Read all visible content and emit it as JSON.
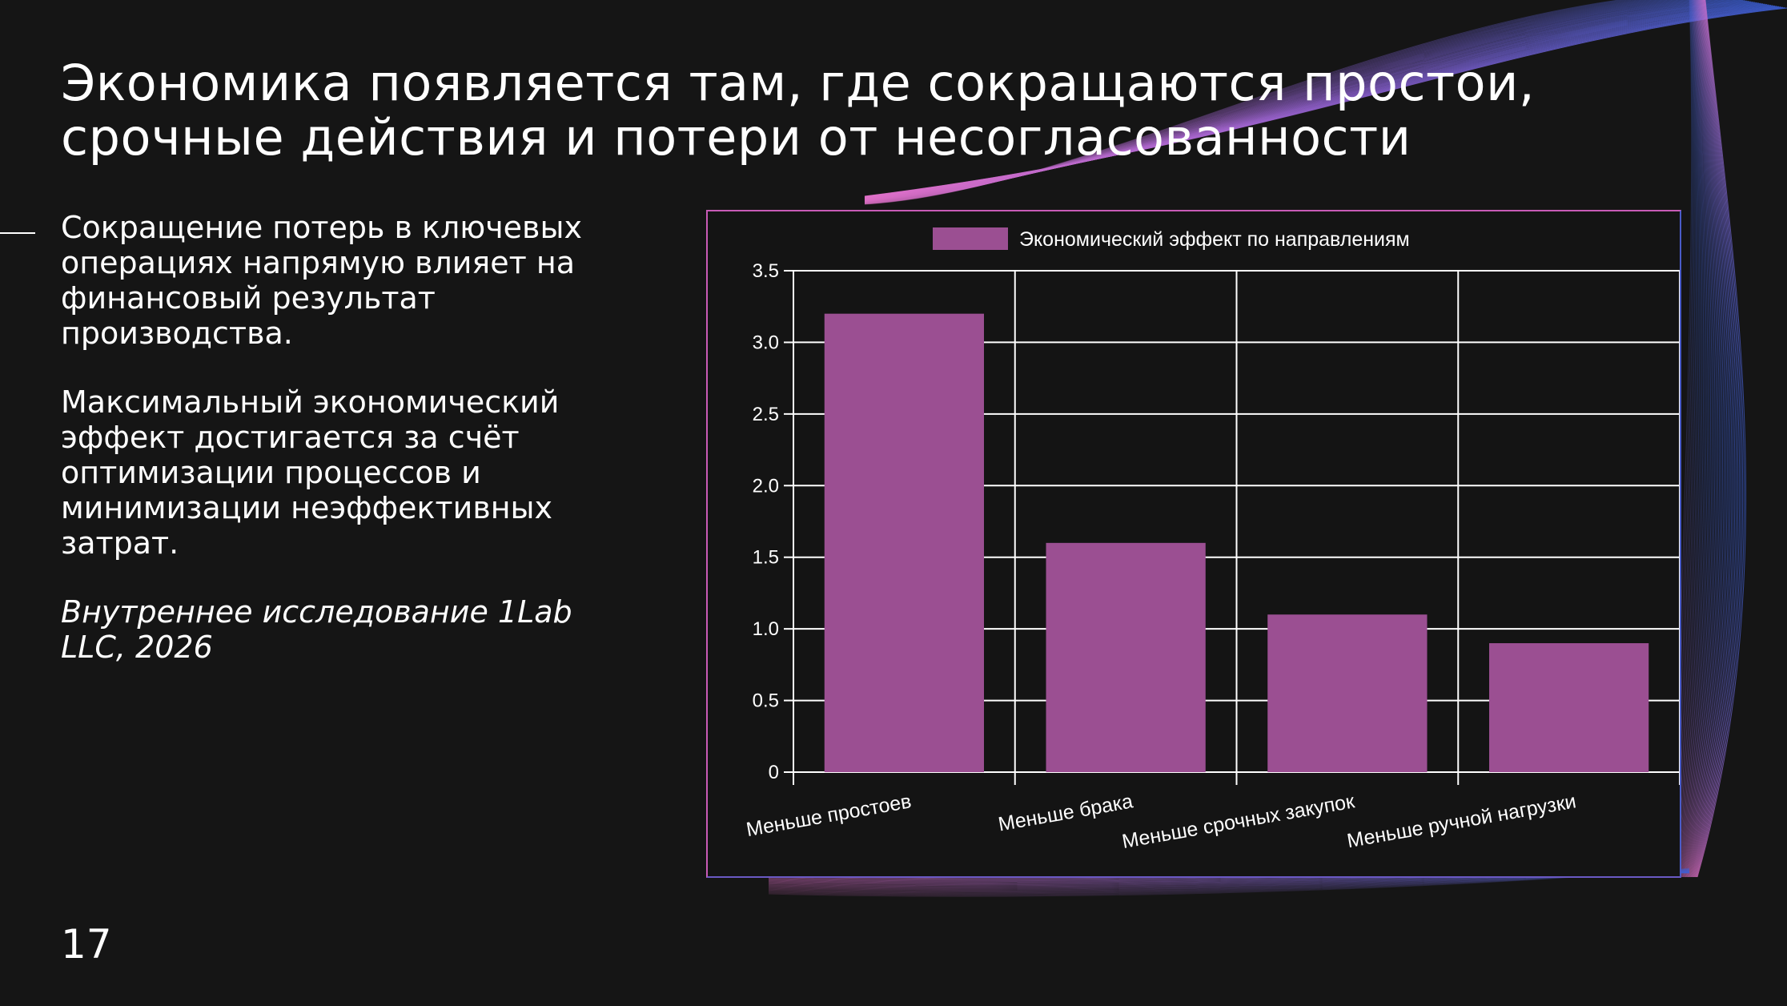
{
  "slide": {
    "title_lines": [
      "Экономика появляется там, где сокращаются простои,",
      "срочные действия и потери от несогласованности"
    ],
    "paragraphs": [
      "Сокращение потерь в ключевых операциях напрямую влияет на финансовый результат производства.",
      "Максимальный экономический эффект достигается за счёт оптимизации процессов и минимизации неэффективных затрат."
    ],
    "source": "Внутреннее исследование 1Lab LLC, 2026",
    "page_number": "17"
  },
  "colors": {
    "background": "#151515",
    "bar": "#9b4f92",
    "grid": "#ffffff",
    "decor_pink": "#e070c8",
    "decor_blue": "#3b5fd6"
  },
  "chart_data": {
    "type": "bar",
    "categories": [
      "Меньше простоев",
      "Меньше брака",
      "Меньше срочных закупок",
      "Меньше ручной нагрузки"
    ],
    "series": [
      {
        "name": "Экономический эффект по направлениям",
        "values": [
          3.2,
          1.6,
          1.1,
          0.9
        ]
      }
    ],
    "ylim": [
      0,
      3.5
    ],
    "yticks": [
      0,
      0.5,
      1.0,
      1.5,
      2.0,
      2.5,
      3.0,
      3.5
    ],
    "ytick_labels": [
      "0",
      "0.5",
      "1.0",
      "1.5",
      "2.0",
      "2.5",
      "3.0",
      "3.5"
    ],
    "grid": true,
    "legend_position": "top-center",
    "title": "",
    "xlabel": "",
    "ylabel": ""
  }
}
